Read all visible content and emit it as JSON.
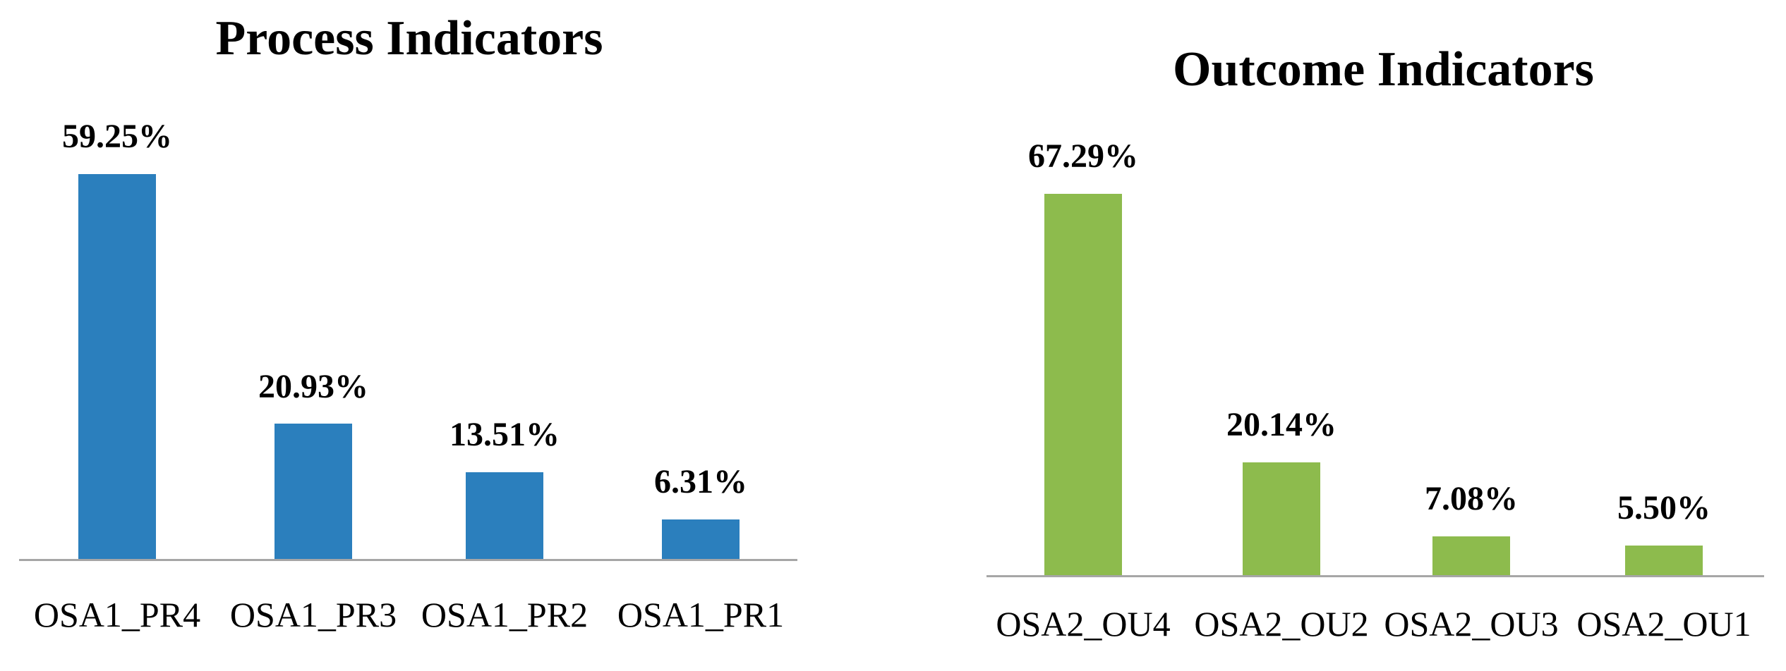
{
  "figure": {
    "background_color": "#ffffff",
    "text_color": "#000000"
  },
  "chart_data": [
    {
      "type": "bar",
      "title": "Process Indicators",
      "categories": [
        "OSA1_PR4",
        "OSA1_PR3",
        "OSA1_PR2",
        "OSA1_PR1"
      ],
      "values": [
        59.25,
        20.93,
        13.51,
        6.31
      ],
      "data_labels": [
        "59.25%",
        "20.93%",
        "13.51%",
        "6.31%"
      ],
      "bar_color": "#2b7fbd",
      "axis_color": "#a6a6a6",
      "xlabel": "",
      "ylabel": "",
      "ylim": [
        0,
        70
      ],
      "grid": "off",
      "legend": "none",
      "y_axis_visible": false,
      "sort_order": "descending"
    },
    {
      "type": "bar",
      "title": "Outcome Indicators",
      "categories": [
        "OSA2_OU4",
        "OSA2_OU2",
        "OSA2_OU3",
        "OSA2_OU1"
      ],
      "values": [
        67.29,
        20.14,
        7.08,
        5.5
      ],
      "data_labels": [
        "67.29%",
        "20.14%",
        "7.08%",
        "5.50%"
      ],
      "bar_color": "#8dbb4d",
      "axis_color": "#a6a6a6",
      "xlabel": "",
      "ylabel": "",
      "ylim": [
        0,
        70
      ],
      "grid": "off",
      "legend": "none",
      "y_axis_visible": false,
      "sort_order": "descending_with_swap"
    }
  ]
}
